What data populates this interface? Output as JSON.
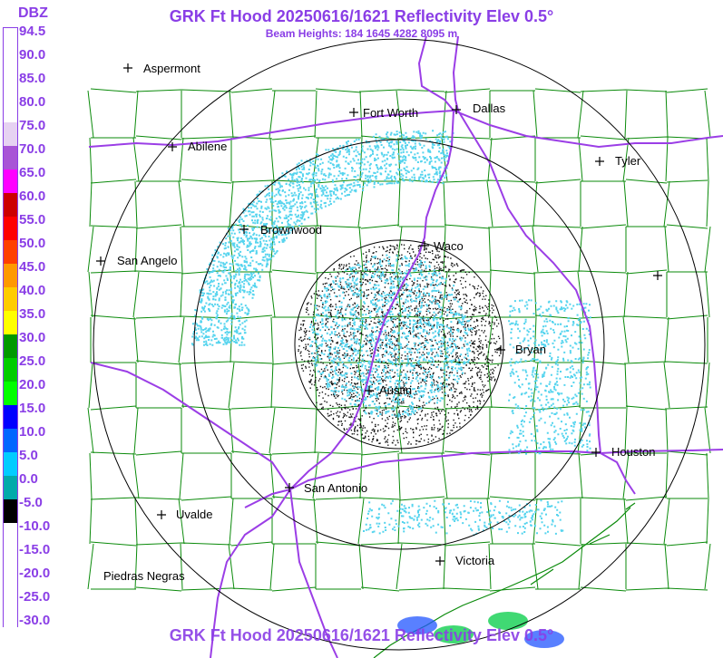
{
  "header": {
    "title": "GRK Ft Hood 20250616/1621 Reflectivity Elev 0.5°",
    "subtitle": "Beam Heights: 184 1645 4282 8095 m"
  },
  "legend": {
    "unit": "DBZ",
    "entries": [
      {
        "label": "94.5",
        "color": "#ffffff"
      },
      {
        "label": "90.0",
        "color": "#ffffff"
      },
      {
        "label": "85.0",
        "color": "#ffffff"
      },
      {
        "label": "80.0",
        "color": "#ffffff"
      },
      {
        "label": "75.0",
        "color": "#e6d2f2"
      },
      {
        "label": "70.0",
        "color": "#a855d6"
      },
      {
        "label": "65.0",
        "color": "#ff00ff"
      },
      {
        "label": "60.0",
        "color": "#cc0000"
      },
      {
        "label": "55.0",
        "color": "#ff0000"
      },
      {
        "label": "50.0",
        "color": "#ff4000"
      },
      {
        "label": "45.0",
        "color": "#ff9900"
      },
      {
        "label": "40.0",
        "color": "#ffcc00"
      },
      {
        "label": "35.0",
        "color": "#ffff00"
      },
      {
        "label": "30.0",
        "color": "#009900"
      },
      {
        "label": "25.0",
        "color": "#00cc00"
      },
      {
        "label": "20.0",
        "color": "#00ff00"
      },
      {
        "label": "15.0",
        "color": "#0000ff"
      },
      {
        "label": "10.0",
        "color": "#0066ff"
      },
      {
        "label": "5.0",
        "color": "#00ccff"
      },
      {
        "label": "0.0",
        "color": "#00aaaa"
      },
      {
        "label": "-5.0",
        "color": "#000000"
      },
      {
        "label": "-10.0",
        "color": "#ffffff"
      },
      {
        "label": "-15.0",
        "color": "#ffffff"
      },
      {
        "label": "-20.0",
        "color": "#ffffff"
      },
      {
        "label": "-25.0",
        "color": "#ffffff"
      },
      {
        "label": "-30.0",
        "color": "#ffffff"
      }
    ]
  },
  "cities": [
    {
      "name": "Aspermont"
    },
    {
      "name": "Fort Worth"
    },
    {
      "name": "Dallas"
    },
    {
      "name": "Abilene"
    },
    {
      "name": "Tyler"
    },
    {
      "name": "Brownwood"
    },
    {
      "name": "Waco"
    },
    {
      "name": "San Angelo"
    },
    {
      "name": "Bryan"
    },
    {
      "name": "Austin"
    },
    {
      "name": "Houston"
    },
    {
      "name": "San Antonio"
    },
    {
      "name": "Uvalde"
    },
    {
      "name": "Victoria"
    },
    {
      "name": "Piedras Negras"
    }
  ],
  "colors": {
    "title": "#8a3ee6",
    "county_lines": "#0a8a0a",
    "highways": "#9b3ee6",
    "range_rings": "#000000",
    "echo_light": "#55d4ee",
    "echo_dark": "#111111"
  }
}
